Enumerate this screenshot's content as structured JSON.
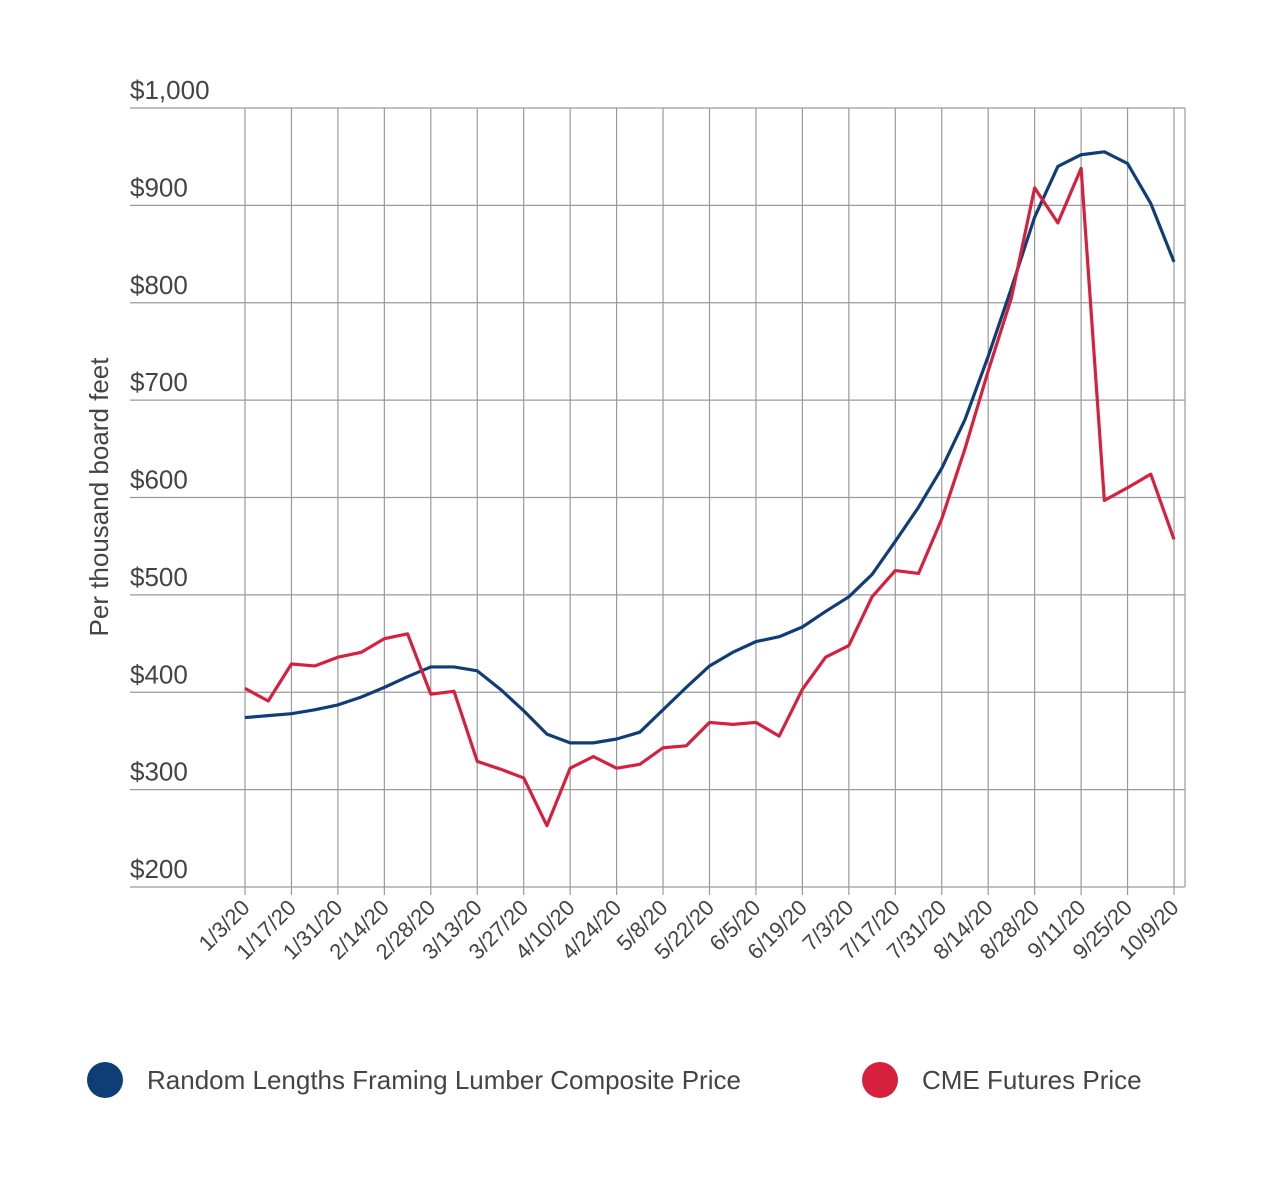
{
  "chart_data": {
    "type": "line",
    "y_label": "Per thousand board feet",
    "categories": [
      "1/3/20",
      null,
      "1/17/20",
      null,
      "1/31/20",
      null,
      "2/14/20",
      null,
      "2/28/20",
      null,
      "3/13/20",
      null,
      "3/27/20",
      null,
      "4/10/20",
      null,
      "4/24/20",
      null,
      "5/8/20",
      null,
      "5/22/20",
      null,
      "6/5/20",
      null,
      "6/19/20",
      null,
      "7/3/20",
      null,
      "7/17/20",
      null,
      "7/31/20",
      null,
      "8/14/20",
      null,
      "8/28/20",
      null,
      "9/11/20",
      null,
      "9/25/20",
      null,
      "10/9/20"
    ],
    "series": [
      {
        "name": "Random Lengths Framing Lumber Composite Price",
        "color": "#0f3e77",
        "values": [
          374,
          376,
          378,
          382,
          387,
          395,
          405,
          416,
          426,
          426,
          422,
          403,
          381,
          357,
          348,
          348,
          352,
          359,
          382,
          405,
          427,
          441,
          452,
          457,
          467,
          483,
          498,
          521,
          555,
          590,
          630,
          680,
          745,
          815,
          888,
          940,
          952,
          955,
          943,
          902,
          842
        ]
      },
      {
        "name": "CME Futures Price",
        "color": "#d7203e",
        "values": [
          404,
          391,
          429,
          427,
          436,
          441,
          455,
          460,
          398,
          401,
          329,
          321,
          312,
          263,
          322,
          334,
          322,
          326,
          343,
          345,
          369,
          367,
          369,
          355,
          403,
          436,
          448,
          498,
          525,
          522,
          578,
          650,
          730,
          805,
          918,
          882,
          938,
          597,
          610,
          624,
          557
        ]
      }
    ],
    "ylim": [
      200,
      1000
    ],
    "yticks": [
      {
        "value": 200,
        "label": "$200"
      },
      {
        "value": 300,
        "label": "$300"
      },
      {
        "value": 400,
        "label": "$400"
      },
      {
        "value": 500,
        "label": "$500"
      },
      {
        "value": 600,
        "label": "$600"
      },
      {
        "value": 700,
        "label": "$700"
      },
      {
        "value": 800,
        "label": "$800"
      },
      {
        "value": 900,
        "label": "$900"
      },
      {
        "value": 1000,
        "label": "$1,000"
      }
    ],
    "grid": true
  }
}
